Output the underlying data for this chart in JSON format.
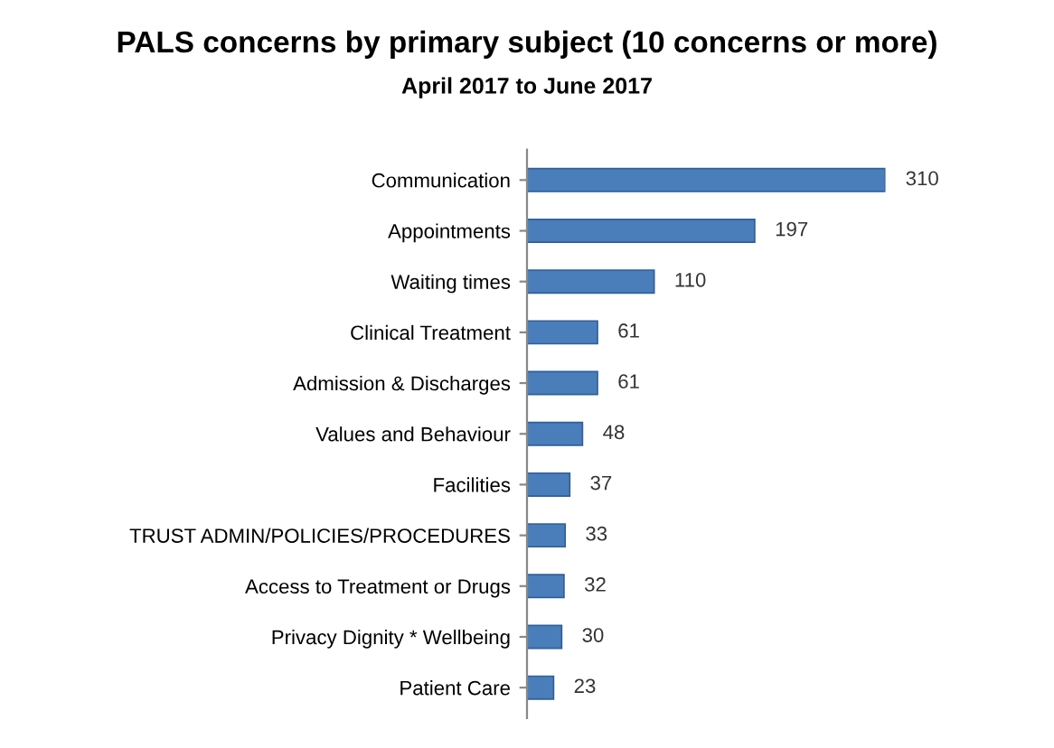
{
  "chart_data": {
    "type": "bar",
    "orientation": "horizontal",
    "title": "PALS concerns by primary subject (10 concerns or more)",
    "subtitle": "April 2017 to June 2017",
    "categories": [
      "Communication",
      "Appointments",
      "Waiting times",
      "Clinical Treatment",
      "Admission & Discharges",
      "Values and Behaviour",
      "Facilities",
      "TRUST ADMIN/POLICIES/PROCEDURES",
      "Access to Treatment or Drugs",
      "Privacy Dignity * Wellbeing",
      "Patient Care"
    ],
    "values": [
      310,
      197,
      110,
      61,
      61,
      48,
      37,
      33,
      32,
      30,
      23
    ],
    "color": "#4a7ebb",
    "data_labels": true,
    "grid": false,
    "legend": false
  }
}
